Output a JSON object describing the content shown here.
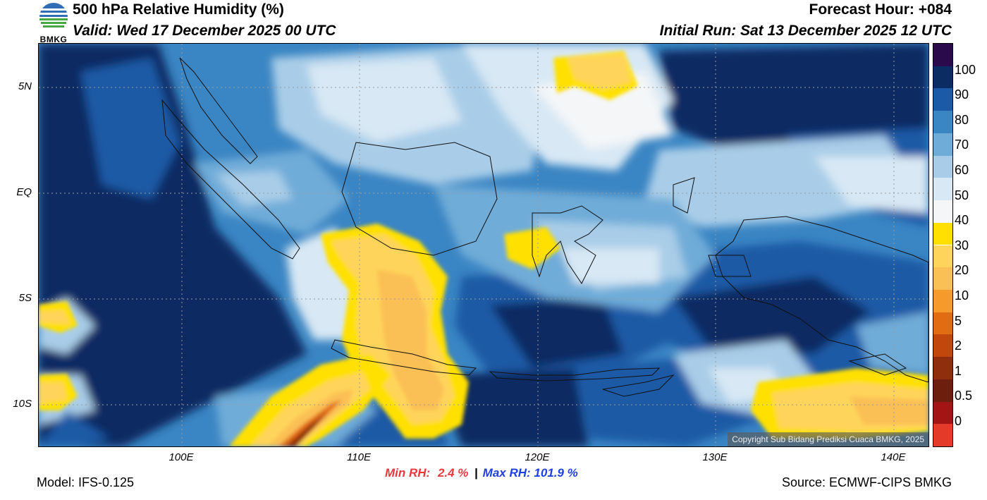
{
  "header": {
    "title": "500 hPa Relative Humidity (%)",
    "valid": "Valid: Wed 17 December 2025 00 UTC",
    "forecast_hour": "Forecast Hour: +084",
    "initial_run": "Initial Run: Sat 13 December 2025 12 UTC",
    "logo_text": "BMKG"
  },
  "axes": {
    "lat_labels": [
      "5N",
      "EQ",
      "5S",
      "10S"
    ],
    "lon_labels": [
      "100E",
      "110E",
      "120E",
      "130E",
      "140E"
    ]
  },
  "colorbar": {
    "labels": [
      "100",
      "90",
      "80",
      "70",
      "60",
      "50",
      "40",
      "30",
      "20",
      "10",
      "5",
      "2",
      "1",
      "0.5",
      "0"
    ],
    "colors": [
      "#2a0a4a",
      "#0b2c63",
      "#1b5aa6",
      "#3a85c3",
      "#70acd8",
      "#a9cde8",
      "#d8e8f4",
      "#f4f6f8",
      "#ffe000",
      "#ffd45a",
      "#fbc055",
      "#f79a2c",
      "#e26c12",
      "#c2470c",
      "#8f2e0c",
      "#6e1e0c",
      "#a51415",
      "#e43a2a"
    ]
  },
  "map": {
    "copyright": "Copyright Sub Bidang Prediksi Cuaca BMKG, 2025"
  },
  "footer": {
    "model": "Model: IFS-0.125",
    "min_rh_label": "Min RH:",
    "min_rh_value": "2.4 %",
    "separator": "|",
    "max_rh": "Max RH: 101.9 %",
    "source": "Source: ECMWF-CIPS BMKG"
  }
}
